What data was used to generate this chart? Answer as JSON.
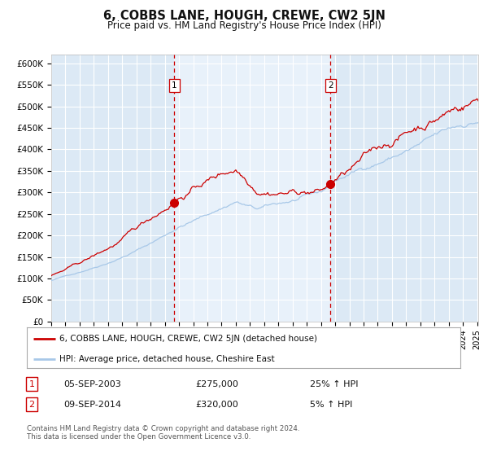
{
  "title": "6, COBBS LANE, HOUGH, CREWE, CW2 5JN",
  "subtitle": "Price paid vs. HM Land Registry's House Price Index (HPI)",
  "x_start_year": 1995,
  "x_end_year": 2025,
  "y_min": 0,
  "y_max": 620000,
  "y_ticks": [
    0,
    50000,
    100000,
    150000,
    200000,
    250000,
    300000,
    350000,
    400000,
    450000,
    500000,
    550000,
    600000
  ],
  "y_tick_labels": [
    "£0",
    "£50K",
    "£100K",
    "£150K",
    "£200K",
    "£250K",
    "£300K",
    "£350K",
    "£400K",
    "£450K",
    "£500K",
    "£550K",
    "£600K"
  ],
  "background_color": "#ffffff",
  "plot_bg_color": "#dce9f5",
  "plot_bg_color_light": "#e8f1fa",
  "grid_color": "#ffffff",
  "sale1_date_year": 2003.67,
  "sale1_price": 275000,
  "sale1_label": "05-SEP-2003",
  "sale2_date_year": 2014.67,
  "sale2_price": 320000,
  "sale2_label": "09-SEP-2014",
  "line_red_color": "#cc0000",
  "line_blue_color": "#a8c8e8",
  "point_color": "#cc0000",
  "vline_color": "#cc0000",
  "note_text": "Contains HM Land Registry data © Crown copyright and database right 2024.\nThis data is licensed under the Open Government Licence v3.0.",
  "legend_label1": "6, COBBS LANE, HOUGH, CREWE, CW2 5JN (detached house)",
  "legend_label2": "HPI: Average price, detached house, Cheshire East"
}
